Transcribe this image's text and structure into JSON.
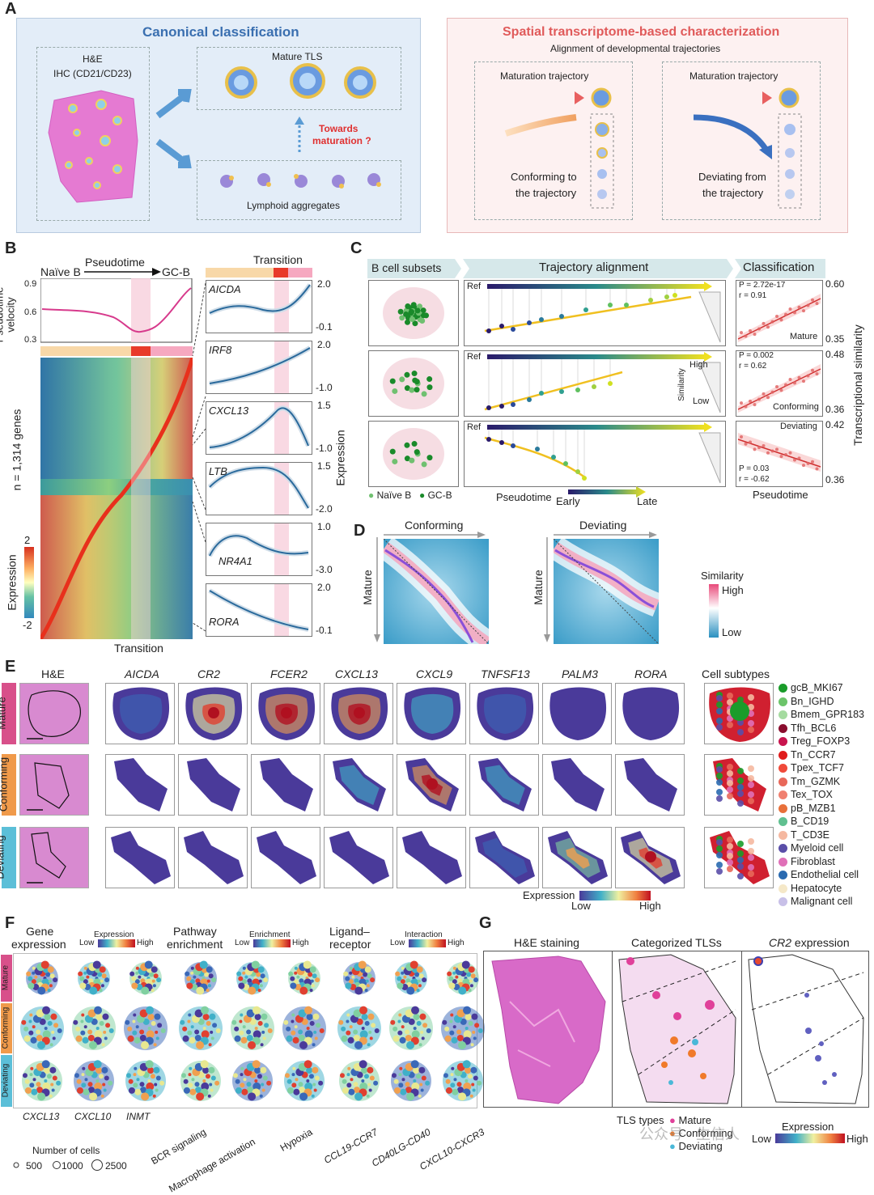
{
  "panels": {
    "A": "A",
    "B": "B",
    "C": "C",
    "D": "D",
    "E": "E",
    "F": "F",
    "G": "G"
  },
  "panelA": {
    "left_title": "Canonical classification",
    "he_line1": "H&E",
    "he_line2": "IHC (CD21/CD23)",
    "mature_tls": "Mature TLS",
    "towards1": "Towards",
    "towards2": "maturation ?",
    "lymphoid": "Lymphoid aggregates",
    "right_title": "Spatial transcriptome-based characterization",
    "right_sub": "Alignment of developmental  trajectories",
    "traj_left": "Maturation trajectory",
    "traj_right": "Maturation trajectory",
    "conf1": "Conforming to",
    "conf2": "the trajectory",
    "dev1": "Deviating from",
    "dev2": "the trajectory",
    "colors": {
      "left_bg": "#e3edf8",
      "right_bg": "#fdf1f1",
      "left_title": "#3a6fb0",
      "right_title": "#e05a5a",
      "towards": "#e03030"
    }
  },
  "panelB": {
    "naive": "Naïve B",
    "pseudotime": "Pseudotime",
    "gcb": "GC-B",
    "velocity_label": "Pseudotime\nvelocity",
    "vel_ticks": [
      "0.9",
      "0.6",
      "0.3"
    ],
    "n_genes": "n = 1,314 genes",
    "expr_label": "Expression",
    "legend_hi": "2",
    "legend_lo": "-2",
    "transition_bottom": "Transition",
    "transition_top": "Transition",
    "expression_axis": "Expression",
    "genes": [
      {
        "name": "AICDA",
        "top": "2.0",
        "bot": "-0.1"
      },
      {
        "name": "IRF8",
        "top": "2.0",
        "bot": "-1.0"
      },
      {
        "name": "CXCL13",
        "top": "1.5",
        "bot": "-1.0"
      },
      {
        "name": "LTB",
        "top": "1.5",
        "bot": "-2.0"
      },
      {
        "name": "NR4A1",
        "top": "1.0",
        "bot": "-3.0"
      },
      {
        "name": "RORA",
        "top": "2.0",
        "bot": "-0.1"
      }
    ]
  },
  "panelC": {
    "h1": "B cell subsets",
    "h2": "Trajectory alignment",
    "h3": "Classification",
    "ref": "Ref",
    "high": "High",
    "low": "Low",
    "similarity": "Similarity",
    "legend_naive": "Naïve B",
    "legend_gcb": "GC-B",
    "pseudotime": "Pseudotime",
    "early": "Early",
    "late": "Late",
    "trans_sim": "Transcriptional similarity",
    "pseudotime_axis": "Pseudotime",
    "rows": [
      {
        "p": "P = 2.72e-17",
        "r": "r = 0.91",
        "label": "Mature",
        "top": "0.60",
        "bot": "0.35"
      },
      {
        "p": "P = 0.002",
        "r": "r = 0.62",
        "label": "Conforming",
        "top": "0.48",
        "bot": "0.36"
      },
      {
        "p": "P = 0.03",
        "r": "r = -0.62",
        "label": "Deviating",
        "top": "0.42",
        "bot": "0.36"
      }
    ]
  },
  "panelD": {
    "conforming": "Conforming",
    "deviating": "Deviating",
    "mature": "Mature",
    "similarity": "Similarity",
    "high": "High",
    "low": "Low"
  },
  "panelE": {
    "he": "H&E",
    "genes": [
      "AICDA",
      "CR2",
      "FCER2",
      "CXCL13",
      "CXCL9",
      "TNFSF13",
      "PALM3",
      "RORA"
    ],
    "cell_subtypes": "Cell subtypes",
    "rows": [
      "Mature",
      "Conforming",
      "Deviating"
    ],
    "row_colors": [
      "#d8508a",
      "#f09a4a",
      "#5bbfd8"
    ],
    "expression": "Expression",
    "low": "Low",
    "high": "High",
    "legend": [
      {
        "name": "gcB_MKI67",
        "color": "#1a9c2a"
      },
      {
        "name": "Bn_IGHD",
        "color": "#6cc46a"
      },
      {
        "name": "Bmem_GPR183",
        "color": "#a5dba0"
      },
      {
        "name": "Tfh_BCL6",
        "color": "#8a0d2e"
      },
      {
        "name": "Treg_FOXP3",
        "color": "#c8144e"
      },
      {
        "name": "Tn_CCR7",
        "color": "#e01c1c"
      },
      {
        "name": "Tpex_TCF7",
        "color": "#f04a3a"
      },
      {
        "name": "Tm_GZMK",
        "color": "#e8685a"
      },
      {
        "name": "Tex_TOX",
        "color": "#f08070"
      },
      {
        "name": "pB_MZB1",
        "color": "#e8703a"
      },
      {
        "name": "B_CD19",
        "color": "#60c090"
      },
      {
        "name": "T_CD3E",
        "color": "#f5b8a0"
      },
      {
        "name": "Myeloid cell",
        "color": "#5a4ea8"
      },
      {
        "name": "Fibroblast",
        "color": "#e070b8"
      },
      {
        "name": "Endothelial cell",
        "color": "#2a6ab0"
      },
      {
        "name": "Hepatocyte",
        "color": "#f5e8c8"
      },
      {
        "name": "Malignant cell",
        "color": "#c8c0e8"
      }
    ]
  },
  "panelF": {
    "col1a": "Gene",
    "col1b": "expression",
    "col2a": "Pathway",
    "col2b": "enrichment",
    "col3a": "Ligand–",
    "col3b": "receptor",
    "expression": "Expression",
    "enrichment": "Enrichment",
    "interaction": "Interaction",
    "low": "Low",
    "high": "High",
    "rows": [
      "Mature",
      "Conforming",
      "Deviating"
    ],
    "bottom": [
      "CXCL13",
      "CXCL10",
      "INMT",
      "BCR signaling",
      "Macrophage activation",
      "Hypoxia",
      "CCL19-CCR7",
      "CD40LG-CD40",
      "CXCL10-CXCR3"
    ],
    "ncells": "Number of cells",
    "sizes": [
      "500",
      "1000",
      "2500"
    ]
  },
  "panelG": {
    "he": "H&E staining",
    "cat": "Categorized TLSs",
    "cr2": "CR2",
    "cr2_rest": " expression",
    "tls_types": "TLS types",
    "mature": "Mature",
    "conforming": "Conforming",
    "deviating": "Deviating",
    "expression": "Expression",
    "low": "Low",
    "high": "High",
    "watermark": "公众号 · 生信人"
  }
}
